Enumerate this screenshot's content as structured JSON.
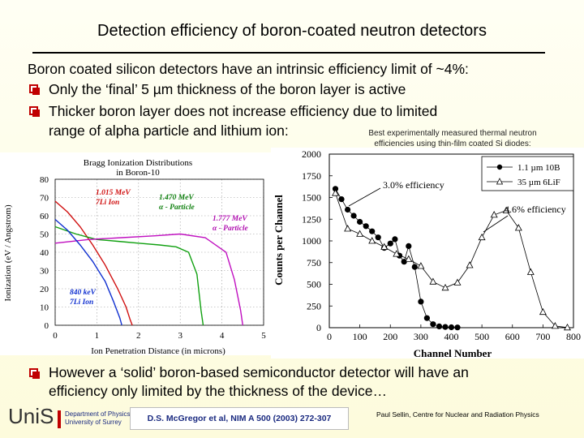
{
  "slide": {
    "title": "Detection efficiency of boron-coated neutron detectors",
    "intro": "Boron coated silicon detectors have an intrinsic efficiency limit of ~4%:",
    "bullets": [
      "Only the ‘final’ 5 µm thickness of the boron layer is active",
      "Thicker boron layer does not increase efficiency due to limited",
      "range of alpha particle and lithium ion:"
    ],
    "bottom_bullet_line1": "However a ‘solid’ boron-based semiconductor detector will have an",
    "bottom_bullet_line2": "efficiency only limited by the thickness of the device…",
    "caption_line1": "Best experimentally measured thermal neutron",
    "caption_line2": "efficiencies using thin-film coated Si diodes:",
    "citation": "D.S. McGregor et al, NIM A 500 (2003) 272-307",
    "credit": "Paul Sellin, Centre for Nuclear and Radiation Physics",
    "logo": {
      "wordmark": "UniS",
      "dept_line1": "Department of Physics",
      "dept_line2": "University of Surrey"
    },
    "colors": {
      "bullet": "#c00000",
      "citation_text": "#1a2a80"
    }
  },
  "chart_data": [
    {
      "type": "line",
      "title": "Bragg Ionization Distributions",
      "subtitle": "in Boron-10",
      "xlabel": "Ion Penetration Distance (in microns)",
      "ylabel": "Ionization (eV / Angstrom)",
      "xlim": [
        0,
        5
      ],
      "ylim": [
        0,
        80
      ],
      "xticks": [
        0,
        1,
        2,
        3,
        4,
        5
      ],
      "yticks": [
        0,
        10,
        20,
        30,
        40,
        50,
        60,
        70,
        80
      ],
      "grid": true,
      "annotations": [
        "1.015 MeV",
        "7Li Ion",
        "1.470 MeV",
        "α - Particle",
        "1.777 MeV",
        "α - Particle",
        "840 keV",
        "7Li Ion"
      ],
      "series": [
        {
          "name": "1.015 MeV 7Li Ion",
          "color": "#d01010",
          "x": [
            0,
            0.3,
            0.6,
            0.9,
            1.2,
            1.5,
            1.7,
            1.8,
            1.85
          ],
          "y": [
            68,
            62,
            54,
            44,
            33,
            20,
            10,
            3,
            0
          ]
        },
        {
          "name": "1.470 MeV α - Particle",
          "color": "#10a010",
          "x": [
            0,
            0.5,
            1.0,
            1.5,
            2.0,
            2.5,
            2.9,
            3.2,
            3.4,
            3.5,
            3.55
          ],
          "y": [
            54,
            50,
            47,
            46,
            45,
            44,
            43,
            40,
            28,
            8,
            0
          ]
        },
        {
          "name": "1.777 MeV α - Particle",
          "color": "#c010c0",
          "x": [
            0,
            0.8,
            1.6,
            2.4,
            3.0,
            3.6,
            4.1,
            4.3,
            4.45,
            4.5
          ],
          "y": [
            45,
            47,
            48,
            49,
            50,
            48,
            40,
            25,
            8,
            0
          ]
        },
        {
          "name": "840 keV 7Li Ion",
          "color": "#1030d0",
          "x": [
            0,
            0.3,
            0.6,
            0.9,
            1.2,
            1.4,
            1.55,
            1.6
          ],
          "y": [
            58,
            52,
            44,
            35,
            24,
            13,
            4,
            0
          ]
        }
      ]
    },
    {
      "type": "scatter",
      "xlabel": "Channel Number",
      "ylabel": "Counts per Channel",
      "xlim": [
        0,
        800
      ],
      "ylim": [
        0,
        2000
      ],
      "xticks": [
        0,
        100,
        200,
        300,
        400,
        500,
        600,
        700,
        800
      ],
      "yticks": [
        0,
        250,
        500,
        750,
        1000,
        1250,
        1500,
        1750,
        2000
      ],
      "legend_position": "top-right",
      "annotations": [
        "3.0% efficiency",
        "4.6% efficiency"
      ],
      "series": [
        {
          "name": "1.1 µm 10B",
          "marker": "filled-circle",
          "x": [
            20,
            40,
            60,
            80,
            100,
            120,
            140,
            160,
            180,
            200,
            215,
            230,
            245,
            260,
            280,
            300,
            320,
            340,
            360,
            380,
            400,
            420
          ],
          "y": [
            1600,
            1480,
            1360,
            1290,
            1220,
            1170,
            1110,
            1040,
            920,
            970,
            1020,
            830,
            760,
            940,
            700,
            300,
            110,
            40,
            15,
            8,
            5,
            3
          ]
        },
        {
          "name": "35 µm 6LiF",
          "marker": "open-triangle",
          "x": [
            20,
            60,
            100,
            140,
            180,
            220,
            260,
            300,
            340,
            380,
            420,
            460,
            500,
            540,
            580,
            620,
            660,
            700,
            740,
            780
          ],
          "y": [
            1550,
            1140,
            1080,
            1000,
            930,
            850,
            790,
            710,
            530,
            460,
            520,
            720,
            1040,
            1300,
            1350,
            1150,
            640,
            180,
            20,
            2
          ]
        }
      ]
    }
  ]
}
